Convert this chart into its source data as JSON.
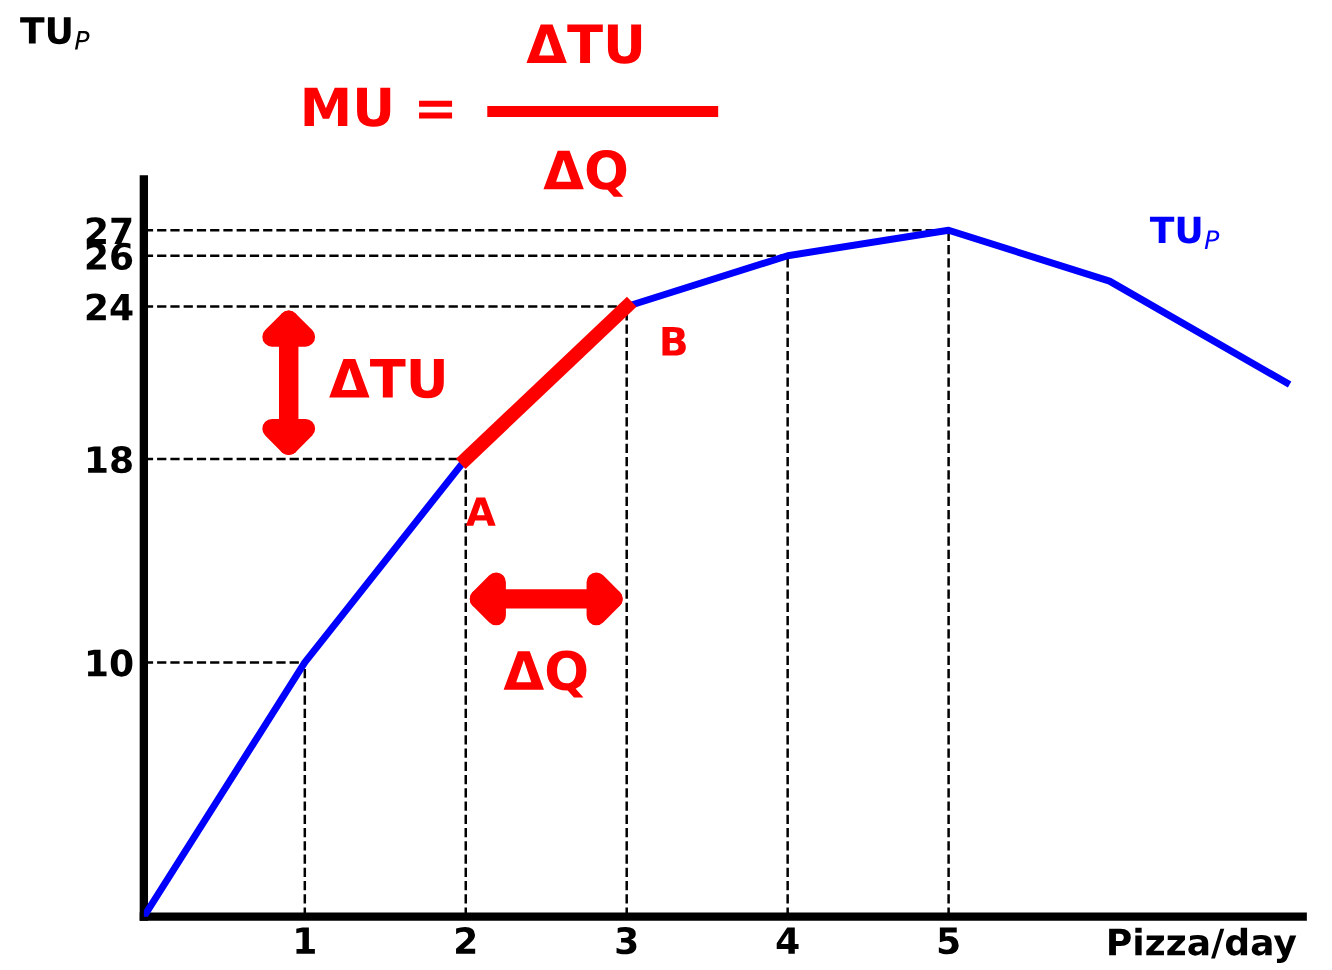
{
  "chart_data": {
    "type": "line",
    "xlabel": "Pizza/day",
    "ylabel": "TU$_{P}$",
    "series": [
      {
        "name": "TU$_{P}$",
        "color": "#0000ff",
        "x": [
          0,
          1,
          2,
          3,
          4,
          5,
          6,
          7.1
        ],
        "values": [
          0,
          10,
          18,
          24,
          26,
          27,
          25,
          21
        ]
      },
      {
        "type": "line",
        "color": "#ff0000",
        "x": [
          2,
          3
        ],
        "values": [
          18,
          24
        ]
      }
    ],
    "xlim": [
      0,
      7.2
    ],
    "ylim": [
      0,
      29
    ],
    "xticks": [
      1,
      2,
      3,
      4,
      5
    ],
    "yticks": [
      10,
      18,
      24,
      26,
      27
    ],
    "ref_lines": [
      {
        "axis": "y",
        "value": 10,
        "line_style": "dashed"
      },
      {
        "axis": "y",
        "value": 18,
        "line_style": "dashed"
      },
      {
        "axis": "y",
        "value": 24,
        "line_style": "dashed"
      },
      {
        "axis": "y",
        "value": 26,
        "line_style": "dashed"
      },
      {
        "axis": "y",
        "value": 27,
        "line_style": "dashed"
      },
      {
        "axis": "x",
        "value": 1,
        "line_style": "dashed"
      },
      {
        "axis": "x",
        "value": 2,
        "line_style": "dashed"
      },
      {
        "axis": "x",
        "value": 3,
        "line_style": "dashed"
      },
      {
        "axis": "x",
        "value": 4,
        "line_style": "dashed"
      },
      {
        "axis": "x",
        "value": 5,
        "line_style": "dashed"
      }
    ],
    "annotations": [
      "MU =",
      "ΔTU",
      "ΔQ",
      "ΔTU",
      "ΔQ",
      {
        "text": "A",
        "x": 2,
        "y": 18
      },
      {
        "text": "B",
        "x": 3,
        "y": 24
      }
    ],
    "grid": false,
    "legend": false,
    "marker": "none",
    "line_style": "solid"
  }
}
